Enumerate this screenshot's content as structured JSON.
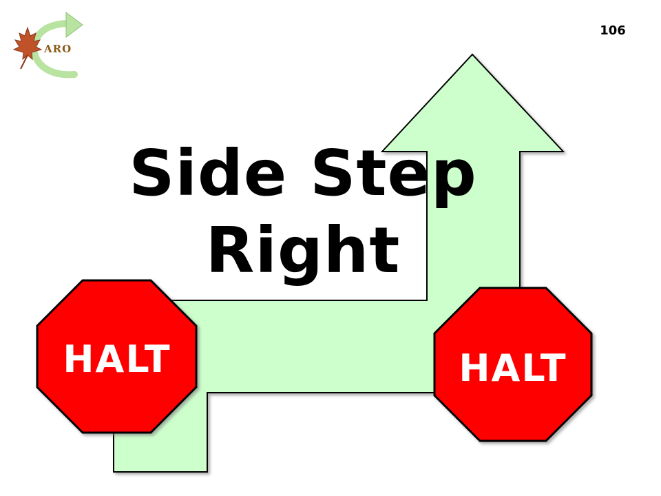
{
  "page_number": "106",
  "title_line1": "Side Step",
  "title_line2": "Right",
  "signs": [
    {
      "label": "HALT"
    },
    {
      "label": "HALT"
    }
  ],
  "logo": {
    "text": "ARO",
    "icon": "maple-leaf-arrow-logo"
  },
  "colors": {
    "arrow_fill": "#ccffcc",
    "stop_fill": "#ff0000",
    "outline": "#000000"
  }
}
